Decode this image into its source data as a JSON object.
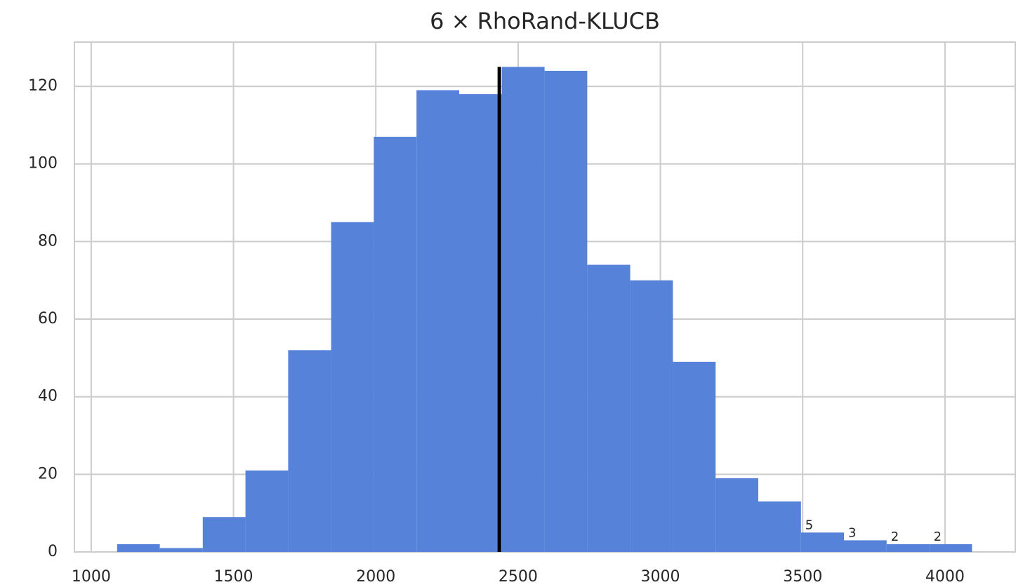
{
  "chart_data": {
    "type": "histogram",
    "title": "6 × RhoRand-KLUCB",
    "bins": [
      1091,
      1241,
      1392,
      1542,
      1692,
      1843,
      1993,
      2143,
      2293,
      2443,
      2593,
      2743,
      2894,
      3044,
      3194,
      3344,
      3494,
      3645,
      3795,
      3945,
      4095
    ],
    "values": [
      2,
      1,
      9,
      21,
      52,
      85,
      107,
      119,
      118,
      125,
      124,
      74,
      70,
      49,
      19,
      13,
      5,
      3,
      2,
      2
    ],
    "value_labels": [
      null,
      null,
      null,
      null,
      null,
      null,
      null,
      null,
      null,
      null,
      null,
      null,
      null,
      null,
      null,
      null,
      "5",
      "3",
      "2",
      "2"
    ],
    "color": "#5683d9",
    "vline": {
      "x": 2434,
      "color": "#000000"
    },
    "xlim": [
      941,
      4247
    ],
    "xticks": [
      1000,
      1500,
      2000,
      2500,
      3000,
      3500,
      4000
    ],
    "ylim": [
      0,
      131.4
    ],
    "yticks": [
      0,
      20,
      40,
      60,
      80,
      100,
      120
    ],
    "grid": true
  }
}
